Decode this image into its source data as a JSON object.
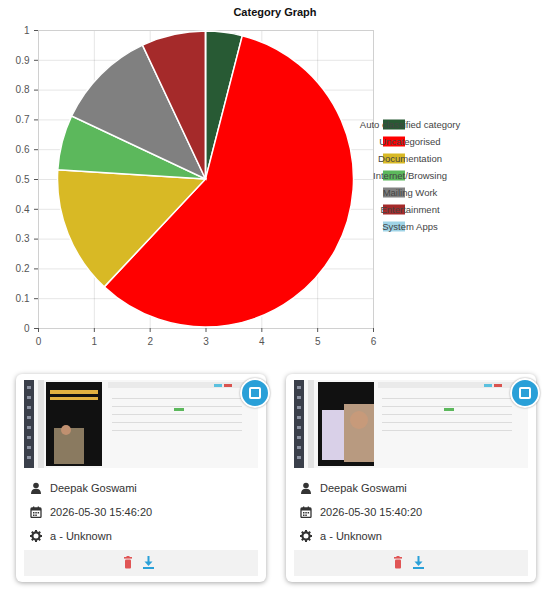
{
  "chart_data": {
    "type": "pie",
    "title": "Category Graph",
    "categories": [
      "Auto classified category",
      "Uncategorised",
      "Documentation",
      "Internet/Browsing",
      "Mailing Work",
      "Entertainment",
      "System Apps"
    ],
    "values": [
      4,
      58,
      14,
      6,
      11,
      7,
      0
    ],
    "colors": [
      "#285a34",
      "#ff0000",
      "#d8b925",
      "#5cb85c",
      "#808080",
      "#a52a2a",
      "#9fd3e6"
    ],
    "xlim": [
      0,
      6
    ],
    "xticks": [
      0,
      1,
      2,
      3,
      4,
      5,
      6
    ],
    "ylim": [
      0,
      1
    ],
    "yticks": [
      0,
      0.1,
      0.2,
      0.3,
      0.4,
      0.5,
      0.6,
      0.7,
      0.8,
      0.9,
      1
    ],
    "grid": true,
    "legend": "right"
  },
  "cards": [
    {
      "user": "Deepak Goswami",
      "datetime": "2026-05-30 15:46:20",
      "category": "a - Unknown"
    },
    {
      "user": "Deepak Goswami",
      "datetime": "2026-05-30 15:40:20",
      "category": "a - Unknown"
    }
  ]
}
